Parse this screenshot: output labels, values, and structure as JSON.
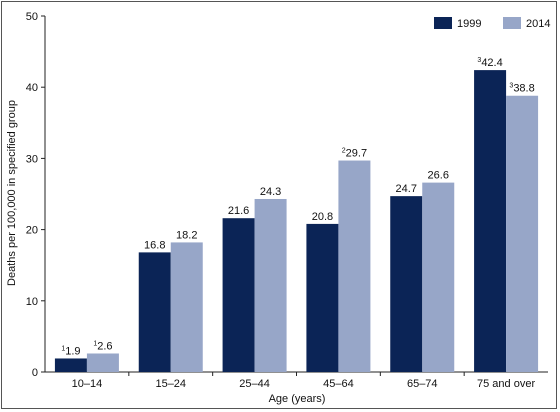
{
  "chart_data": {
    "type": "bar",
    "categories": [
      "10–14",
      "15–24",
      "25–44",
      "45–64",
      "65–74",
      "75 and over"
    ],
    "series": [
      {
        "name": "1999",
        "color": "#0b2456",
        "values": [
          1.9,
          16.8,
          21.6,
          20.8,
          24.7,
          42.4
        ],
        "notes": [
          "1",
          "",
          "",
          "",
          "",
          "3"
        ]
      },
      {
        "name": "2014",
        "color": "#97a6c8",
        "values": [
          2.6,
          18.2,
          24.3,
          29.7,
          26.6,
          38.8
        ],
        "notes": [
          "1",
          "",
          "",
          "2",
          "",
          "3"
        ]
      }
    ],
    "xlabel": "Age (years)",
    "ylabel": "Deaths per 100,000 in specified group",
    "ylim": [
      0,
      50
    ],
    "yticks": [
      0,
      10,
      20,
      30,
      40,
      50
    ],
    "grid": false,
    "legend_position": "top-right"
  }
}
